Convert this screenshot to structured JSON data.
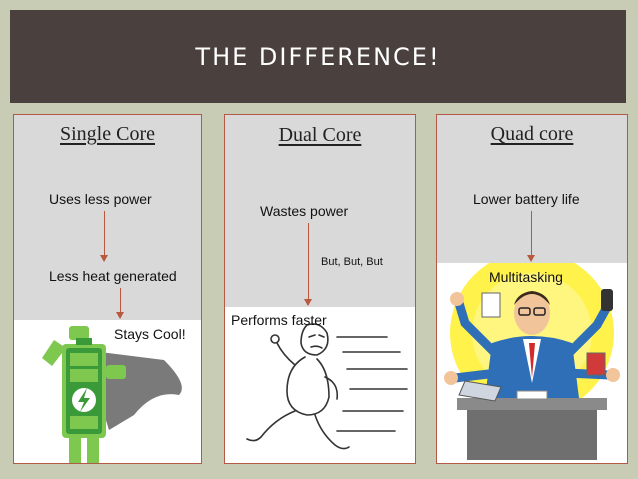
{
  "slide": {
    "title": "THE DIFFERENCE!"
  },
  "columns": [
    {
      "title": "Single Core",
      "points": [
        "Uses less power",
        "Less heat generated",
        "Stays Cool!"
      ]
    },
    {
      "title": "Dual Core",
      "points": [
        "Wastes power",
        "But, But, But",
        "Performs faster"
      ]
    },
    {
      "title": "Quad core",
      "points": [
        "Lower battery life",
        "Multitasking"
      ]
    }
  ],
  "colors": {
    "banner": "#4a413e",
    "background": "#c9ccb4",
    "panel": "#d9d9d9",
    "border": "#b25a45",
    "arrow": "#b9583f",
    "battery_green": "#3a9a3a",
    "hero_green": "#7ec850",
    "cape_gray": "#7a7a7a",
    "sun_yellow": "#fff24a",
    "suit_blue": "#2e6fb8"
  },
  "illustrations": [
    "superhero-battery-icon",
    "running-man-sketch-icon",
    "multitasking-businessman-icon"
  ]
}
